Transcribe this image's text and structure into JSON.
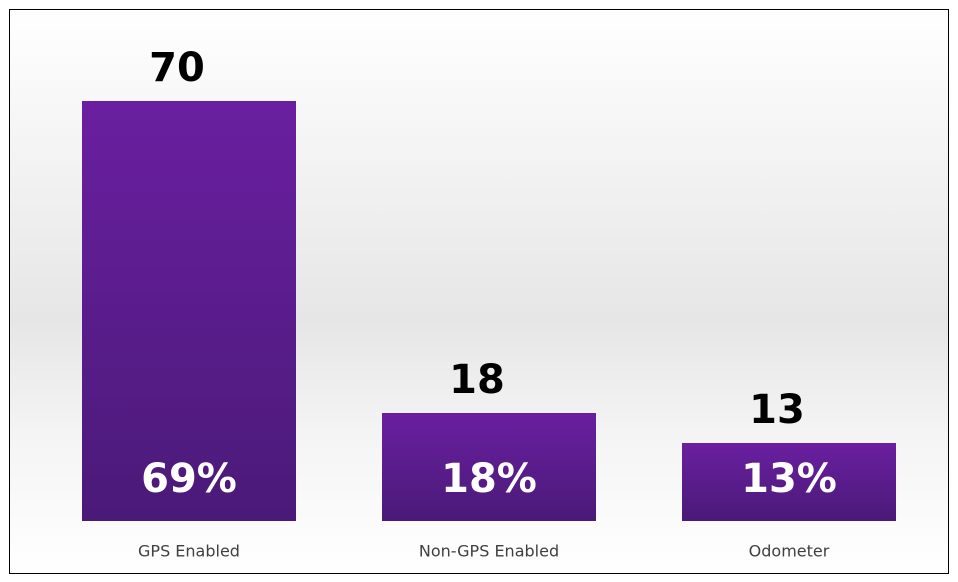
{
  "chart_data": {
    "type": "bar",
    "categories": [
      "GPS Enabled",
      "Non-GPS Enabled",
      "Odometer"
    ],
    "values": [
      70,
      18,
      13
    ],
    "shares": [
      69,
      18,
      13
    ],
    "share_labels": [
      "69%",
      "18%",
      "13%"
    ],
    "color": "#5b1f8f",
    "ylim": [
      0,
      70
    ]
  }
}
